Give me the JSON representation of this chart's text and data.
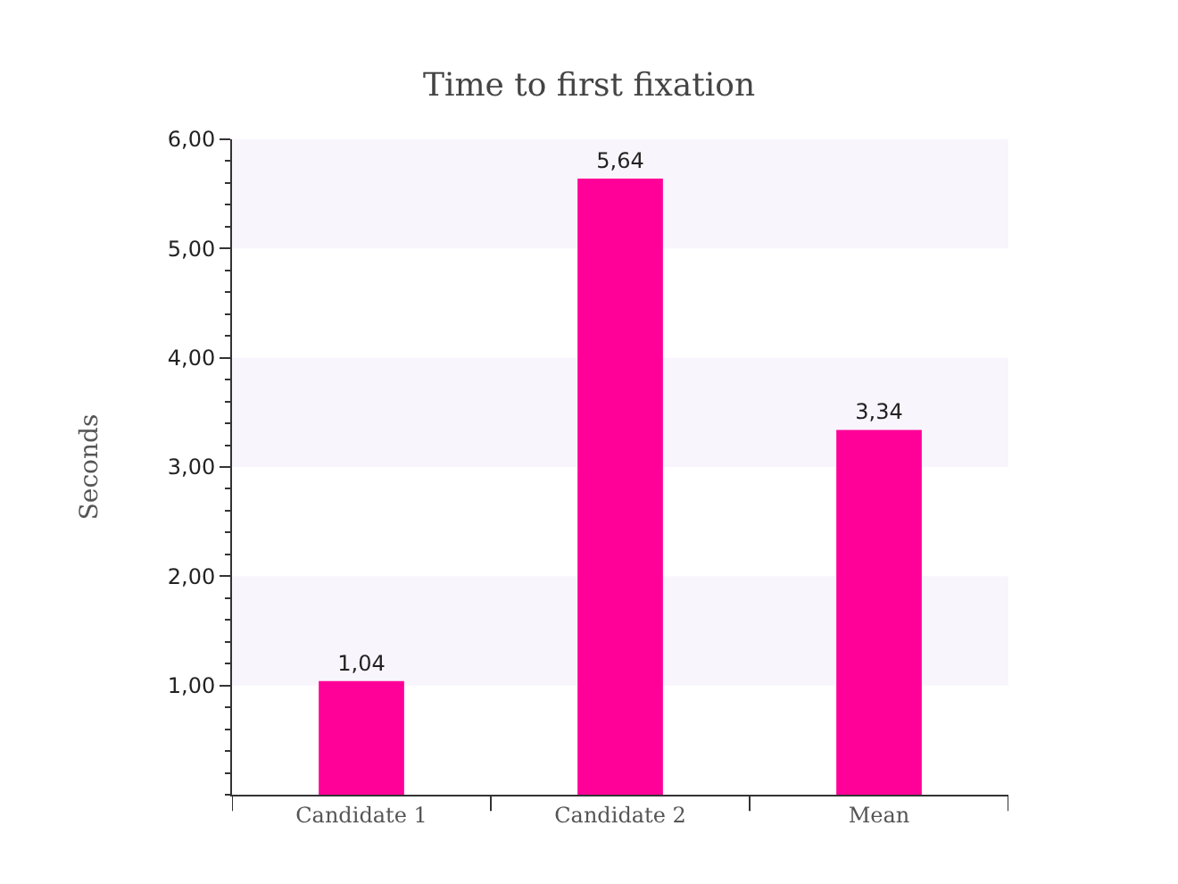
{
  "chart_data": {
    "type": "bar",
    "title": "Time to first fixation",
    "ylabel": "Seconds",
    "categories": [
      "Candidate 1",
      "Candidate 2",
      "Mean"
    ],
    "values": [
      1.04,
      5.64,
      3.34
    ],
    "color": "#ff0099",
    "value_labels": [
      "1,04",
      "5,64",
      "3,34"
    ],
    "ylim": [
      0,
      6
    ],
    "yticks": [
      {
        "value": 1,
        "label": "1,00"
      },
      {
        "value": 2,
        "label": "2,00"
      },
      {
        "value": 3,
        "label": "3,00"
      },
      {
        "value": 4,
        "label": "4,00"
      },
      {
        "value": 5,
        "label": "5,00"
      },
      {
        "value": 6,
        "label": "6,00"
      }
    ],
    "bands": [
      {
        "axis": "y",
        "from": 1,
        "to": 2,
        "color": "#f8f5fd"
      },
      {
        "axis": "y",
        "from": 3,
        "to": 4,
        "color": "#f8f5fd"
      },
      {
        "axis": "y",
        "from": 5,
        "to": 6,
        "color": "#f8f5fd"
      }
    ],
    "grid": false
  }
}
